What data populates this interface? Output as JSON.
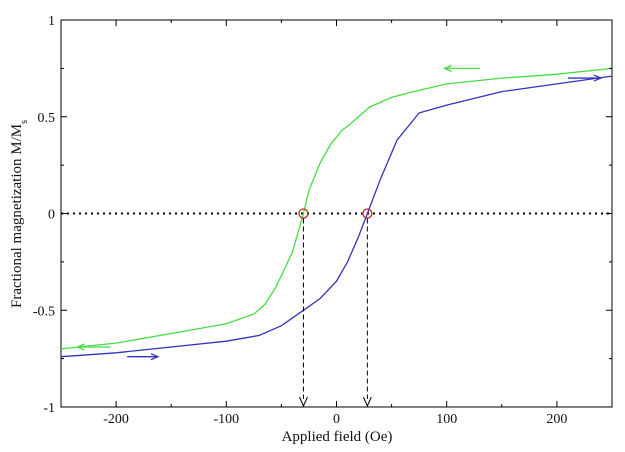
{
  "chart_data": {
    "type": "line",
    "title": "",
    "xlabel": "Applied field (Oe)",
    "ylabel_main": "Fractional magnetization M/M",
    "ylabel_sub": "s",
    "xlim": [
      -250,
      250
    ],
    "ylim": [
      -1,
      1
    ],
    "xticks": [
      -200,
      -100,
      0,
      100,
      200
    ],
    "yticks": [
      -1,
      -0.5,
      0,
      0.5,
      1
    ],
    "ytick_labels": [
      "-1",
      "-0.5",
      "0",
      "0.5",
      "1"
    ],
    "grid": false,
    "series": [
      {
        "color": "#44dd44",
        "direction": "decreasing field",
        "x": [
          250,
          200,
          150,
          100,
          70,
          50,
          30,
          20,
          12,
          5,
          -5,
          -15,
          -25,
          -30,
          -40,
          -55,
          -65,
          -75,
          -100,
          -150,
          -200,
          -250
        ],
        "y": [
          0.75,
          0.72,
          0.7,
          0.67,
          0.63,
          0.6,
          0.55,
          0.5,
          0.46,
          0.43,
          0.36,
          0.26,
          0.12,
          0.0,
          -0.2,
          -0.38,
          -0.47,
          -0.52,
          -0.57,
          -0.62,
          -0.67,
          -0.7
        ]
      },
      {
        "color": "#3333bb",
        "direction": "increasing field",
        "x": [
          -250,
          -200,
          -150,
          -100,
          -70,
          -50,
          -30,
          -15,
          0,
          10,
          20,
          28,
          40,
          55,
          75,
          100,
          150,
          200,
          250
        ],
        "y": [
          -0.74,
          -0.72,
          -0.69,
          -0.66,
          -0.63,
          -0.58,
          -0.5,
          -0.44,
          -0.35,
          -0.25,
          -0.12,
          0.0,
          0.18,
          0.38,
          0.52,
          0.56,
          0.63,
          0.67,
          0.71
        ]
      }
    ],
    "coercive_points": [
      {
        "x": -30,
        "y": 0
      },
      {
        "x": 28,
        "y": 0
      }
    ],
    "zero_line": {
      "y": 0,
      "style": "dotted"
    },
    "arrows": [
      {
        "x_from": 130,
        "x_to": 98,
        "y": 0.75,
        "color": "#44dd44"
      },
      {
        "x_from": 210,
        "x_to": 240,
        "y": 0.7,
        "color": "#3333bb"
      },
      {
        "x_from": -205,
        "x_to": -235,
        "y": -0.69,
        "color": "#44dd44"
      },
      {
        "x_from": -190,
        "x_to": -162,
        "y": -0.74,
        "color": "#3333bb"
      }
    ]
  }
}
